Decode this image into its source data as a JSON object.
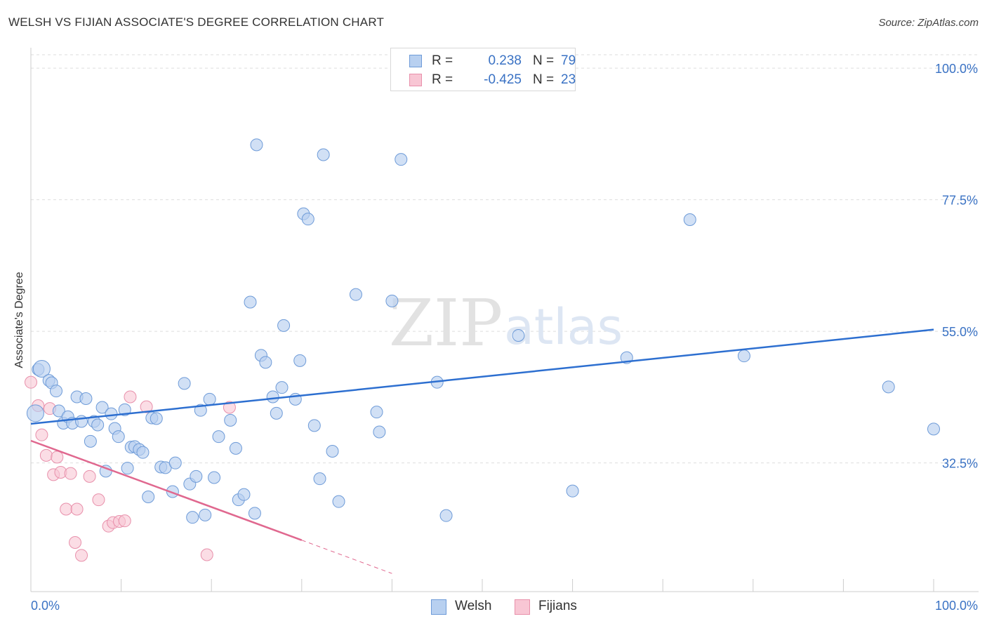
{
  "header": {
    "title": "WELSH VS FIJIAN ASSOCIATE'S DEGREE CORRELATION CHART",
    "source": "Source: ZipAtlas.com"
  },
  "legend_top": {
    "rows": [
      {
        "r_label": "R =",
        "r_value": "0.238",
        "n_label": "N =",
        "n_value": "79"
      },
      {
        "r_label": "R =",
        "r_value": "-0.425",
        "n_label": "N =",
        "n_value": "23"
      }
    ]
  },
  "watermark": {
    "zip": "ZIP",
    "atlas": "atlas"
  },
  "colors": {
    "welsh_fill": "#b8d0f0",
    "welsh_stroke": "#6e9bd8",
    "welsh_line": "#2d6fd0",
    "fijian_fill": "#f8c6d4",
    "fijian_stroke": "#e890ab",
    "fijian_line": "#e0688f",
    "grid": "#dddddd",
    "axis_text": "#3a72c4"
  },
  "chart_data": {
    "type": "scatter",
    "title": "WELSH VS FIJIAN ASSOCIATE'S DEGREE CORRELATION CHART",
    "xlabel": "",
    "ylabel": "Associate's Degree",
    "xlim": [
      0,
      100
    ],
    "ylim": [
      10.5,
      103.5
    ],
    "x_tick_labels": [
      "0.0%",
      "100.0%"
    ],
    "y_ticks": [
      32.5,
      55.0,
      77.5,
      100.0
    ],
    "y_tick_labels": [
      "32.5%",
      "55.0%",
      "77.5%",
      "100.0%"
    ],
    "grid": true,
    "legend": [
      "Welsh",
      "Fijians"
    ],
    "series": [
      {
        "name": "Welsh",
        "r": 0.238,
        "n": 79,
        "trend": {
          "x": [
            0,
            100
          ],
          "y": [
            39.2,
            55.3
          ]
        },
        "points": [
          [
            0.8,
            48.5
          ],
          [
            1.2,
            48.6
          ],
          [
            2.0,
            46.6
          ],
          [
            2.3,
            46.2
          ],
          [
            2.8,
            44.8
          ],
          [
            3.1,
            41.4
          ],
          [
            3.6,
            39.3
          ],
          [
            4.1,
            40.4
          ],
          [
            4.6,
            39.3
          ],
          [
            5.1,
            43.8
          ],
          [
            5.6,
            39.6
          ],
          [
            6.1,
            43.5
          ],
          [
            6.6,
            36.2
          ],
          [
            7.0,
            39.6
          ],
          [
            7.4,
            39.0
          ],
          [
            7.9,
            42.0
          ],
          [
            8.3,
            31.1
          ],
          [
            8.9,
            40.9
          ],
          [
            9.3,
            38.4
          ],
          [
            9.7,
            37.0
          ],
          [
            10.4,
            41.6
          ],
          [
            10.7,
            31.6
          ],
          [
            11.1,
            35.2
          ],
          [
            11.5,
            35.3
          ],
          [
            12.0,
            34.8
          ],
          [
            12.4,
            34.3
          ],
          [
            13.0,
            26.7
          ],
          [
            13.4,
            40.2
          ],
          [
            13.9,
            40.1
          ],
          [
            14.4,
            31.8
          ],
          [
            14.9,
            31.7
          ],
          [
            15.7,
            27.6
          ],
          [
            16.0,
            32.5
          ],
          [
            17.0,
            46.1
          ],
          [
            17.6,
            28.9
          ],
          [
            17.9,
            23.2
          ],
          [
            18.3,
            30.2
          ],
          [
            18.8,
            41.5
          ],
          [
            19.3,
            23.6
          ],
          [
            19.8,
            43.4
          ],
          [
            20.3,
            30.0
          ],
          [
            20.8,
            37.0
          ],
          [
            22.1,
            39.8
          ],
          [
            22.7,
            35.0
          ],
          [
            23.0,
            26.2
          ],
          [
            23.6,
            27.1
          ],
          [
            24.3,
            60.0
          ],
          [
            24.8,
            23.9
          ],
          [
            25.0,
            86.9
          ],
          [
            25.5,
            50.9
          ],
          [
            26.0,
            49.7
          ],
          [
            26.8,
            43.8
          ],
          [
            27.2,
            41.0
          ],
          [
            27.8,
            45.4
          ],
          [
            28.0,
            56.0
          ],
          [
            29.3,
            43.4
          ],
          [
            29.8,
            50.0
          ],
          [
            30.2,
            75.1
          ],
          [
            30.7,
            74.2
          ],
          [
            31.4,
            38.9
          ],
          [
            32.0,
            29.8
          ],
          [
            32.4,
            85.2
          ],
          [
            33.4,
            34.5
          ],
          [
            34.1,
            25.9
          ],
          [
            36.0,
            61.3
          ],
          [
            38.3,
            41.2
          ],
          [
            38.6,
            37.8
          ],
          [
            40.0,
            60.2
          ],
          [
            41.0,
            84.4
          ],
          [
            45.0,
            46.3
          ],
          [
            46.0,
            23.5
          ],
          [
            54.0,
            54.3
          ],
          [
            60.0,
            27.7
          ],
          [
            66.0,
            50.5
          ],
          [
            73.0,
            74.1
          ],
          [
            79.0,
            50.8
          ],
          [
            95.0,
            45.5
          ],
          [
            100.0,
            38.3
          ],
          [
            0.5,
            41.0
          ]
        ]
      },
      {
        "name": "Fijians",
        "r": -0.425,
        "n": 23,
        "trend": {
          "x": [
            0,
            30
          ],
          "y": [
            36.3,
            19.3
          ]
        },
        "trend_dashed": {
          "x": [
            30,
            40
          ],
          "y": [
            19.3,
            13.6
          ]
        },
        "points": [
          [
            0.0,
            46.3
          ],
          [
            0.8,
            42.3
          ],
          [
            1.2,
            37.3
          ],
          [
            1.7,
            33.8
          ],
          [
            2.1,
            41.8
          ],
          [
            2.5,
            30.5
          ],
          [
            2.9,
            33.5
          ],
          [
            3.3,
            30.9
          ],
          [
            3.9,
            24.6
          ],
          [
            4.4,
            30.7
          ],
          [
            4.9,
            18.9
          ],
          [
            5.1,
            24.6
          ],
          [
            5.6,
            16.7
          ],
          [
            6.5,
            30.2
          ],
          [
            7.5,
            26.2
          ],
          [
            8.6,
            21.7
          ],
          [
            9.1,
            22.3
          ],
          [
            9.8,
            22.5
          ],
          [
            10.4,
            22.6
          ],
          [
            11.0,
            43.8
          ],
          [
            12.8,
            42.1
          ],
          [
            19.5,
            16.8
          ],
          [
            22.0,
            42.0
          ]
        ]
      }
    ]
  }
}
